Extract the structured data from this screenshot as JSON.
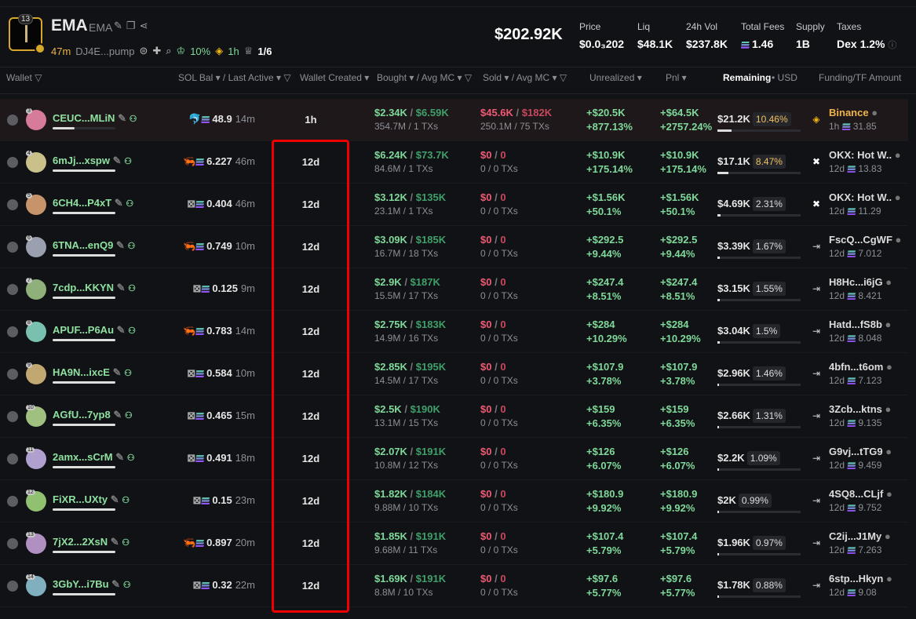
{
  "token": {
    "name": "EMA",
    "symbol": "EMA",
    "badge_count": "13",
    "age": "47m",
    "address": "DJ4E...pump",
    "top10": "10%",
    "dev_time": "1h",
    "holders_ratio": "1/6",
    "market_cap": "$202.92K"
  },
  "stats": [
    {
      "label": "Price",
      "value": "$0.0₃202"
    },
    {
      "label": "Liq",
      "value": "$48.1K"
    },
    {
      "label": "24h Vol",
      "value": "$237.8K"
    },
    {
      "label": "Total Fees",
      "value": "1.46"
    },
    {
      "label": "Supply",
      "value": "1B"
    },
    {
      "label": "Taxes",
      "value": "Dex 1.2%"
    }
  ],
  "headers": {
    "wallet": "Wallet",
    "sol_bal": "SOL Bal ▾ / Last Active ▾",
    "wallet_created": "Wallet Created ▾",
    "bought": "Bought ▾ / Avg MC ▾",
    "sold": "Sold ▾ / Avg MC ▾",
    "unrealized": "Unrealized ▾",
    "pnl": "Pnl ▾",
    "remaining": "Remaining",
    "remaining_unit": "• USD",
    "funding": "Funding/TF Amount"
  },
  "colors": {
    "accent_green": "#7fd99a",
    "red": "#ee5b74",
    "highlight": "#e00000",
    "gold": "#d6a72a"
  },
  "rows": [
    {
      "rank": "3",
      "wallet": "CEUC...MLiN",
      "icon": "dolphin",
      "sol": "48.9",
      "active": "14m",
      "created": "1h",
      "bought": "$2.34K",
      "bought_mc": "$6.59K",
      "bought_sub": "354.7M / 1 TXs",
      "sold": "$45.6K",
      "sold_mc": "$182K",
      "sold_sub": "250.1M / 75 TXs",
      "unreal": "+$20.5K",
      "unreal_pct": "+877.13%",
      "pnl": "+$64.5K",
      "pnl_pct": "+2757.24%",
      "remaining": "$21.2K",
      "remaining_pct": "10.46%",
      "remaining_frac": 0.1046,
      "fund": "Binance",
      "fund_icon": "binance",
      "fund_time": "1h",
      "fund_amt": "31.85",
      "wallet_frac": 0.35
    },
    {
      "rank": "4",
      "wallet": "6mJj...xspw",
      "icon": "shrimp",
      "sol": "6.227",
      "active": "46m",
      "created": "12d",
      "bought": "$6.24K",
      "bought_mc": "$73.7K",
      "bought_sub": "84.6M / 1 TXs",
      "sold": "$0",
      "sold_mc": "0",
      "sold_sub": "0 / 0 TXs",
      "unreal": "+$10.9K",
      "unreal_pct": "+175.14%",
      "pnl": "+$10.9K",
      "pnl_pct": "+175.14%",
      "remaining": "$17.1K",
      "remaining_pct": "8.47%",
      "remaining_frac": 0.0847,
      "fund": "OKX: Hot W..",
      "fund_icon": "okx",
      "fund_time": "12d",
      "fund_amt": "13.83",
      "wallet_frac": 1
    },
    {
      "rank": "5",
      "wallet": "6CH4...P4xT",
      "icon": "box",
      "sol": "0.404",
      "active": "46m",
      "created": "12d",
      "bought": "$3.12K",
      "bought_mc": "$135K",
      "bought_sub": "23.1M / 1 TXs",
      "sold": "$0",
      "sold_mc": "0",
      "sold_sub": "0 / 0 TXs",
      "unreal": "+$1.56K",
      "unreal_pct": "+50.1%",
      "pnl": "+$1.56K",
      "pnl_pct": "+50.1%",
      "remaining": "$4.69K",
      "remaining_pct": "2.31%",
      "remaining_frac": 0.0231,
      "fund": "OKX: Hot W..",
      "fund_icon": "okx",
      "fund_time": "12d",
      "fund_amt": "11.29",
      "wallet_frac": 1
    },
    {
      "rank": "6",
      "wallet": "6TNA...enQ9",
      "icon": "shrimp",
      "sol": "0.749",
      "active": "10m",
      "created": "12d",
      "bought": "$3.09K",
      "bought_mc": "$185K",
      "bought_sub": "16.7M / 18 TXs",
      "sold": "$0",
      "sold_mc": "0",
      "sold_sub": "0 / 0 TXs",
      "unreal": "+$292.5",
      "unreal_pct": "+9.44%",
      "pnl": "+$292.5",
      "pnl_pct": "+9.44%",
      "remaining": "$3.39K",
      "remaining_pct": "1.67%",
      "remaining_frac": 0.0167,
      "fund": "FscQ...CgWF",
      "fund_icon": "transfer",
      "fund_time": "12d",
      "fund_amt": "7.012",
      "wallet_frac": 1
    },
    {
      "rank": "7",
      "wallet": "7cdp...KKYN",
      "icon": "box",
      "sol": "0.125",
      "active": "9m",
      "created": "12d",
      "bought": "$2.9K",
      "bought_mc": "$187K",
      "bought_sub": "15.5M / 17 TXs",
      "sold": "$0",
      "sold_mc": "0",
      "sold_sub": "0 / 0 TXs",
      "unreal": "+$247.4",
      "unreal_pct": "+8.51%",
      "pnl": "+$247.4",
      "pnl_pct": "+8.51%",
      "remaining": "$3.15K",
      "remaining_pct": "1.55%",
      "remaining_frac": 0.0155,
      "fund": "H8Hc...i6jG",
      "fund_icon": "transfer",
      "fund_time": "12d",
      "fund_amt": "8.421",
      "wallet_frac": 1
    },
    {
      "rank": "8",
      "wallet": "APUF...P6Au",
      "icon": "shrimp",
      "sol": "0.783",
      "active": "14m",
      "created": "12d",
      "bought": "$2.75K",
      "bought_mc": "$183K",
      "bought_sub": "14.9M / 16 TXs",
      "sold": "$0",
      "sold_mc": "0",
      "sold_sub": "0 / 0 TXs",
      "unreal": "+$284",
      "unreal_pct": "+10.29%",
      "pnl": "+$284",
      "pnl_pct": "+10.29%",
      "remaining": "$3.04K",
      "remaining_pct": "1.5%",
      "remaining_frac": 0.015,
      "fund": "Hatd...fS8b",
      "fund_icon": "transfer",
      "fund_time": "12d",
      "fund_amt": "8.048",
      "wallet_frac": 1
    },
    {
      "rank": "9",
      "wallet": "HA9N...ixcE",
      "icon": "box",
      "sol": "0.584",
      "active": "10m",
      "created": "12d",
      "bought": "$2.85K",
      "bought_mc": "$195K",
      "bought_sub": "14.5M / 17 TXs",
      "sold": "$0",
      "sold_mc": "0",
      "sold_sub": "0 / 0 TXs",
      "unreal": "+$107.9",
      "unreal_pct": "+3.78%",
      "pnl": "+$107.9",
      "pnl_pct": "+3.78%",
      "remaining": "$2.96K",
      "remaining_pct": "1.46%",
      "remaining_frac": 0.0146,
      "fund": "4bfn...t6om",
      "fund_icon": "transfer",
      "fund_time": "12d",
      "fund_amt": "7.123",
      "wallet_frac": 1
    },
    {
      "rank": "10",
      "wallet": "AGfU...7yp8",
      "icon": "box",
      "sol": "0.465",
      "active": "15m",
      "created": "12d",
      "bought": "$2.5K",
      "bought_mc": "$190K",
      "bought_sub": "13.1M / 15 TXs",
      "sold": "$0",
      "sold_mc": "0",
      "sold_sub": "0 / 0 TXs",
      "unreal": "+$159",
      "unreal_pct": "+6.35%",
      "pnl": "+$159",
      "pnl_pct": "+6.35%",
      "remaining": "$2.66K",
      "remaining_pct": "1.31%",
      "remaining_frac": 0.0131,
      "fund": "3Zcb...ktns",
      "fund_icon": "transfer",
      "fund_time": "12d",
      "fund_amt": "9.135",
      "wallet_frac": 1
    },
    {
      "rank": "11",
      "wallet": "2amx...sCrM",
      "icon": "box",
      "sol": "0.491",
      "active": "18m",
      "created": "12d",
      "bought": "$2.07K",
      "bought_mc": "$191K",
      "bought_sub": "10.8M / 12 TXs",
      "sold": "$0",
      "sold_mc": "0",
      "sold_sub": "0 / 0 TXs",
      "unreal": "+$126",
      "unreal_pct": "+6.07%",
      "pnl": "+$126",
      "pnl_pct": "+6.07%",
      "remaining": "$2.2K",
      "remaining_pct": "1.09%",
      "remaining_frac": 0.0109,
      "fund": "G9vj...tTG9",
      "fund_icon": "transfer",
      "fund_time": "12d",
      "fund_amt": "9.459",
      "wallet_frac": 1
    },
    {
      "rank": "12",
      "wallet": "FiXR...UXty",
      "icon": "box",
      "sol": "0.15",
      "active": "23m",
      "created": "12d",
      "bought": "$1.82K",
      "bought_mc": "$184K",
      "bought_sub": "9.88M / 10 TXs",
      "sold": "$0",
      "sold_mc": "0",
      "sold_sub": "0 / 0 TXs",
      "unreal": "+$180.9",
      "unreal_pct": "+9.92%",
      "pnl": "+$180.9",
      "pnl_pct": "+9.92%",
      "remaining": "$2K",
      "remaining_pct": "0.99%",
      "remaining_frac": 0.0099,
      "fund": "4SQ8...CLjf",
      "fund_icon": "transfer",
      "fund_time": "12d",
      "fund_amt": "9.752",
      "wallet_frac": 1
    },
    {
      "rank": "13",
      "wallet": "7jX2...2XsN",
      "icon": "shrimp",
      "sol": "0.897",
      "active": "20m",
      "created": "12d",
      "bought": "$1.85K",
      "bought_mc": "$191K",
      "bought_sub": "9.68M / 11 TXs",
      "sold": "$0",
      "sold_mc": "0",
      "sold_sub": "0 / 0 TXs",
      "unreal": "+$107.4",
      "unreal_pct": "+5.79%",
      "pnl": "+$107.4",
      "pnl_pct": "+5.79%",
      "remaining": "$1.96K",
      "remaining_pct": "0.97%",
      "remaining_frac": 0.0097,
      "fund": "C2ij...J1My",
      "fund_icon": "transfer",
      "fund_time": "12d",
      "fund_amt": "7.263",
      "wallet_frac": 1
    },
    {
      "rank": "14",
      "wallet": "3GbY...i7Bu",
      "icon": "box",
      "sol": "0.32",
      "active": "22m",
      "created": "12d",
      "bought": "$1.69K",
      "bought_mc": "$191K",
      "bought_sub": "8.8M / 10 TXs",
      "sold": "$0",
      "sold_mc": "0",
      "sold_sub": "0 / 0 TXs",
      "unreal": "+$97.6",
      "unreal_pct": "+5.77%",
      "pnl": "+$97.6",
      "pnl_pct": "+5.77%",
      "remaining": "$1.78K",
      "remaining_pct": "0.88%",
      "remaining_frac": 0.0088,
      "fund": "6stp...Hkyn",
      "fund_icon": "transfer",
      "fund_time": "12d",
      "fund_amt": "9.08",
      "wallet_frac": 1
    }
  ]
}
